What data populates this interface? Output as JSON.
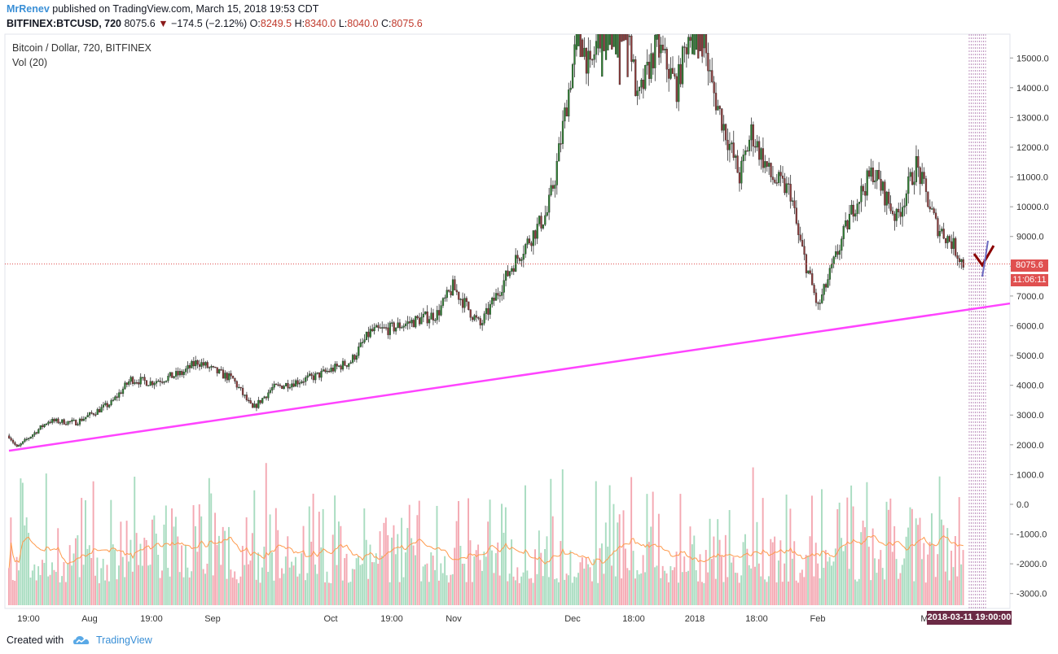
{
  "header": {
    "author": "MrRenev",
    "published": "published on TradingView.com, March 15, 2018 19:53 CDT",
    "symbol": "BITFINEX:BTCUSD, 720",
    "last": "8075.6",
    "change": "−174.5 (−2.12%)",
    "o_label": "O:",
    "o_val": "8249.5",
    "h_label": "H:",
    "h_val": "8340.0",
    "l_label": "L:",
    "l_val": "8040.0",
    "c_label": "C:",
    "c_val": "8075.6"
  },
  "pane": {
    "title": "Bitcoin / Dollar, 720, BITFINEX",
    "indicator": "Vol (20)"
  },
  "tags": {
    "price": "8075.6",
    "countdown": "11:06:11",
    "crosshair_date": "2018-03-11 19:00:00"
  },
  "footer": {
    "created_with": "Created with",
    "brand": "TradingView"
  },
  "colors": {
    "up": "#2e7d32",
    "down": "#8b3a3a",
    "trendline": "#ff44ff",
    "vol_up": "#a8dcc0",
    "vol_down": "#f4a8b2",
    "vol_ma": "#ff9a4d",
    "last_price_line": "#e05050"
  },
  "chart_data": {
    "type": "candlestick",
    "title": "Bitcoin / Dollar, 720, BITFINEX",
    "y_ticks": [
      "15000.0",
      "14000.0",
      "13000.0",
      "12000.0",
      "11000.0",
      "10000.0",
      "9000.0",
      "8000.0",
      "7000.0",
      "6000.0",
      "5000.0",
      "4000.0",
      "3000.0",
      "2000.0",
      "1000.0",
      "0.0",
      "-1000.0",
      "-2000.0",
      "-3000.0"
    ],
    "x_ticks": [
      "19:00",
      "Aug",
      "19:00",
      "Sep",
      "Oct",
      "19:00",
      "Nov",
      "Dec",
      "18:00",
      "2018",
      "18:00",
      "Feb",
      "M"
    ],
    "ylim": [
      -3500,
      15800
    ],
    "x_dates": [
      "2017-07-15",
      "2017-07-17",
      "2017-07-25",
      "2017-08-01",
      "2017-08-10",
      "2017-08-15",
      "2017-08-20",
      "2017-08-28",
      "2017-09-01",
      "2017-09-05",
      "2017-09-10",
      "2017-09-15",
      "2017-09-20",
      "2017-10-01",
      "2017-10-10",
      "2017-10-15",
      "2017-10-20",
      "2017-11-01",
      "2017-11-05",
      "2017-11-12",
      "2017-11-20",
      "2017-11-29",
      "2017-12-01",
      "2017-12-07",
      "2017-12-10",
      "2017-12-17",
      "2017-12-22",
      "2017-12-27",
      "2018-01-01",
      "2018-01-06",
      "2018-01-10",
      "2018-01-17",
      "2018-01-20",
      "2018-01-25",
      "2018-01-30",
      "2018-02-01",
      "2018-02-06",
      "2018-02-10",
      "2018-02-15",
      "2018-02-20",
      "2018-02-26",
      "2018-03-03",
      "2018-03-08",
      "2018-03-12",
      "2018-03-15"
    ],
    "close": [
      2300,
      1900,
      2800,
      2750,
      3400,
      4200,
      4100,
      4400,
      4800,
      4500,
      4200,
      3200,
      3900,
      4300,
      4800,
      5800,
      5900,
      6400,
      7300,
      6000,
      8000,
      9800,
      11000,
      16000,
      14500,
      19000,
      13500,
      15500,
      14000,
      17000,
      14000,
      11000,
      12500,
      11000,
      10500,
      9000,
      6600,
      8100,
      10000,
      11200,
      9600,
      11400,
      9400,
      8800,
      8075.6
    ],
    "trendline": {
      "from": [
        "2017-07-16",
        1800
      ],
      "to": [
        "2018-03-17",
        6750
      ]
    },
    "last_price": 8075.6,
    "volume_ma_label": "Vol (20)"
  }
}
